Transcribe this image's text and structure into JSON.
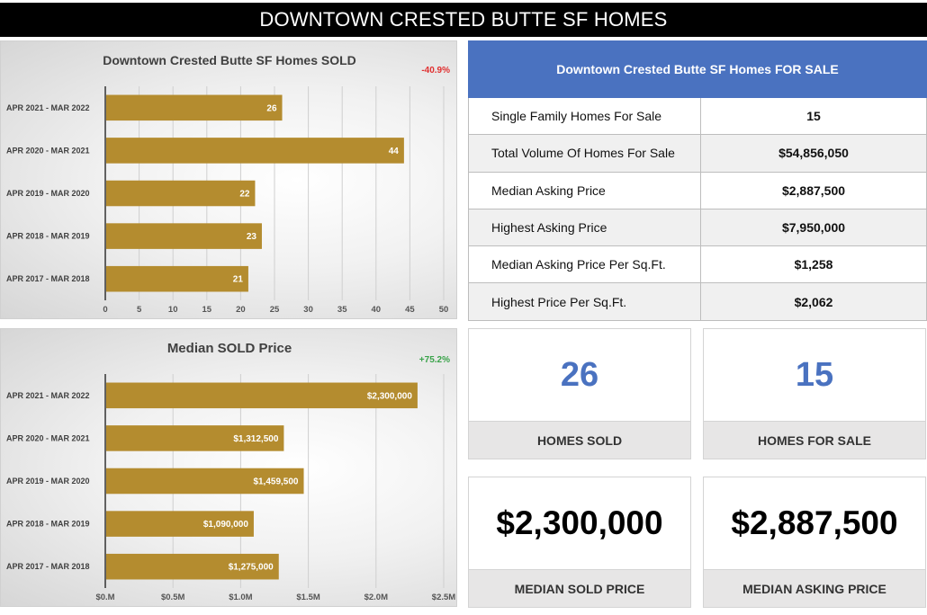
{
  "banner": {
    "title": "DOWNTOWN CRESTED BUTTE SF HOMES"
  },
  "chart_data": [
    {
      "type": "bar",
      "orientation": "horizontal",
      "title": "Downtown Crested Butte SF Homes SOLD",
      "annotation": "-40.9%",
      "categories": [
        "APR 2021 - MAR 2022",
        "APR 2020 - MAR 2021",
        "APR 2019 - MAR 2020",
        "APR 2018 - MAR 2019",
        "APR 2017 - MAR 2018"
      ],
      "values": [
        26,
        44,
        22,
        23,
        21
      ],
      "data_labels": [
        "26",
        "44",
        "22",
        "23",
        "21"
      ],
      "xlim": [
        0,
        50
      ],
      "xticks": [
        0,
        5,
        10,
        15,
        20,
        25,
        30,
        35,
        40,
        45,
        50
      ],
      "xtick_labels": [
        "0",
        "5",
        "10",
        "15",
        "20",
        "25",
        "30",
        "35",
        "40",
        "45",
        "50"
      ],
      "grid": true,
      "bar_color": "#b48c2f",
      "xlabel": "",
      "ylabel": ""
    },
    {
      "type": "bar",
      "orientation": "horizontal",
      "title": "Median SOLD Price",
      "annotation": "+75.2%",
      "categories": [
        "APR 2021 - MAR 2022",
        "APR 2020 - MAR 2021",
        "APR 2019 - MAR 2020",
        "APR 2018 - MAR 2019",
        "APR 2017 - MAR 2018"
      ],
      "values": [
        2300000,
        1312500,
        1459500,
        1090000,
        1275000
      ],
      "data_labels": [
        "$2,300,000",
        "$1,312,500",
        "$1,459,500",
        "$1,090,000",
        "$1,275,000"
      ],
      "xlim": [
        0,
        2500000
      ],
      "xticks": [
        0,
        500000,
        1000000,
        1500000,
        2000000,
        2500000
      ],
      "xtick_labels": [
        "$0.M",
        "$0.5M",
        "$1.0M",
        "$1.5M",
        "$2.0M",
        "$2.5M"
      ],
      "grid": true,
      "bar_color": "#b48c2f",
      "xlabel": "",
      "ylabel": ""
    }
  ],
  "for_sale_table": {
    "title": "Downtown Crested Butte SF Homes FOR SALE",
    "header_color": "#4a72c0",
    "rows": [
      {
        "label": "Single Family Homes For Sale",
        "value": "15"
      },
      {
        "label": "Total Volume Of Homes For Sale",
        "value": "$54,856,050"
      },
      {
        "label": "Median Asking Price",
        "value": "$2,887,500"
      },
      {
        "label": "Highest Asking Price",
        "value": "$7,950,000"
      },
      {
        "label": "Median Asking Price Per Sq.Ft.",
        "value": "$1,258"
      },
      {
        "label": "Highest Price Per Sq.Ft.",
        "value": "$2,062"
      }
    ]
  },
  "kpis": [
    {
      "value": "26",
      "label": "HOMES SOLD"
    },
    {
      "value": "15",
      "label": "HOMES FOR SALE"
    },
    {
      "value": "$2,300,000",
      "label": "MEDIAN SOLD PRICE"
    },
    {
      "value": "$2,887,500",
      "label": "MEDIAN ASKING PRICE"
    }
  ],
  "colors": {
    "accent_blue": "#4a72c0",
    "bar_gold": "#b48c2f",
    "negative": "#e03030",
    "positive": "#3aa34a"
  }
}
